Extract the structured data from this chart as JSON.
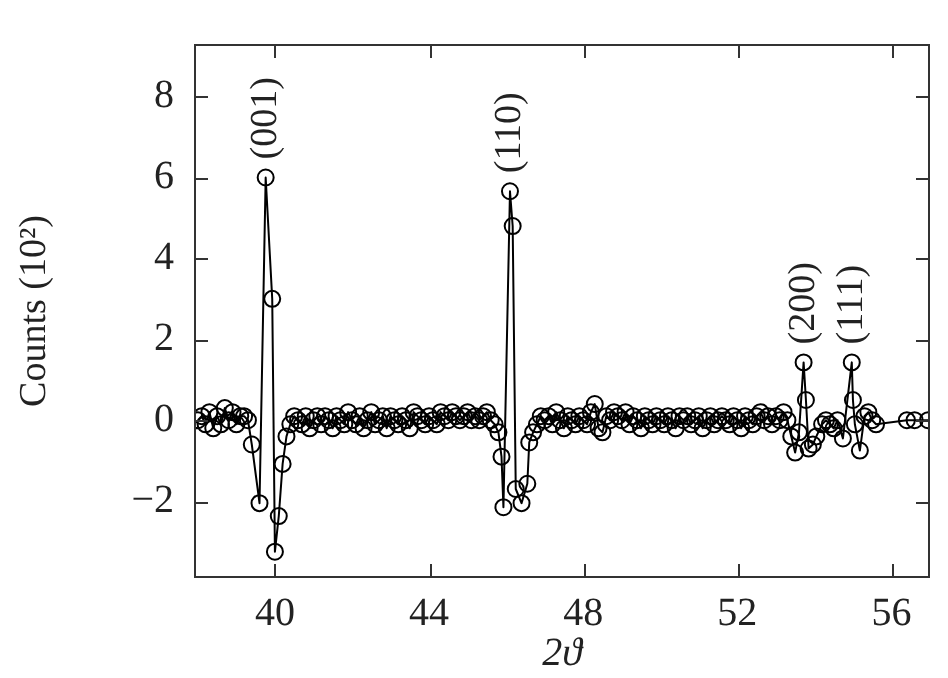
{
  "chart_data": {
    "type": "line",
    "xlabel": "2ϑ",
    "ylabel": "Counts (10²)",
    "xlim": [
      37.9,
      57.0
    ],
    "xticks": [
      40,
      44,
      48,
      52,
      56
    ],
    "ylim": [
      -3.9,
      9.3
    ],
    "yticks": [
      -2,
      0,
      2,
      4,
      6,
      8
    ],
    "grid": false,
    "legend": false,
    "marker": "circle",
    "line_style": "solid",
    "series": [
      {
        "color": "#000000",
        "x": [
          38.0,
          38.1,
          38.2,
          38.3,
          38.4,
          38.5,
          38.6,
          38.7,
          38.8,
          38.9,
          39.0,
          39.1,
          39.2,
          39.3,
          39.4,
          39.6,
          39.76,
          39.93,
          40.0,
          40.1,
          40.2,
          40.3,
          40.4,
          40.5,
          40.6,
          40.7,
          40.8,
          40.9,
          41.0,
          41.1,
          41.2,
          41.3,
          41.4,
          41.5,
          41.6,
          41.7,
          41.8,
          41.9,
          42.0,
          42.1,
          42.2,
          42.3,
          42.4,
          42.5,
          42.6,
          42.7,
          42.8,
          42.9,
          43.0,
          43.1,
          43.2,
          43.3,
          43.4,
          43.5,
          43.6,
          43.7,
          43.8,
          43.9,
          44.0,
          44.1,
          44.2,
          44.3,
          44.4,
          44.5,
          44.6,
          44.7,
          44.8,
          44.9,
          45.0,
          45.1,
          45.2,
          45.3,
          45.4,
          45.5,
          45.6,
          45.7,
          45.8,
          45.88,
          45.93,
          46.1,
          46.17,
          46.25,
          46.4,
          46.55,
          46.6,
          46.7,
          46.8,
          46.9,
          47.0,
          47.1,
          47.2,
          47.3,
          47.4,
          47.5,
          47.6,
          47.7,
          47.8,
          47.9,
          48.0,
          48.1,
          48.2,
          48.3,
          48.4,
          48.5,
          48.6,
          48.7,
          48.8,
          48.9,
          49.0,
          49.1,
          49.2,
          49.3,
          49.4,
          49.5,
          49.6,
          49.7,
          49.8,
          49.9,
          50.0,
          50.1,
          50.2,
          50.3,
          50.4,
          50.5,
          50.6,
          50.7,
          50.8,
          50.9,
          51.0,
          51.1,
          51.2,
          51.3,
          51.4,
          51.5,
          51.6,
          51.7,
          51.8,
          51.9,
          52.0,
          52.1,
          52.2,
          52.3,
          52.4,
          52.5,
          52.6,
          52.7,
          52.8,
          52.9,
          53.0,
          53.1,
          53.2,
          53.3,
          53.4,
          53.5,
          53.6,
          53.72,
          53.78,
          53.85,
          53.96,
          54.05,
          54.2,
          54.3,
          54.4,
          54.5,
          54.6,
          54.74,
          54.97,
          55.0,
          55.05,
          55.18,
          55.3,
          55.4,
          55.5,
          55.6,
          56.4,
          56.6,
          56.95
        ],
        "values": [
          0,
          0.1,
          -0.1,
          0.2,
          -0.2,
          0.1,
          -0.1,
          0.3,
          0,
          0.2,
          -0.1,
          0.1,
          0.1,
          0,
          -0.6,
          -2.05,
          6.0,
          3.0,
          -3.25,
          -2.37,
          -1.08,
          -0.4,
          -0.1,
          0.1,
          0,
          -0.1,
          0.1,
          -0.2,
          0,
          0.1,
          -0.1,
          0.1,
          0,
          -0.2,
          0.1,
          0,
          -0.1,
          0.2,
          0,
          -0.1,
          0.1,
          -0.2,
          0,
          0.2,
          -0.1,
          0,
          0.1,
          -0.2,
          0.1,
          0,
          -0.1,
          0.1,
          0,
          -0.2,
          0.2,
          0.1,
          0,
          -0.1,
          0.1,
          0,
          -0.1,
          0.2,
          0.1,
          0,
          0.2,
          0.1,
          0,
          0.1,
          0.2,
          0,
          0.1,
          0,
          0.1,
          0.2,
          0,
          -0.1,
          -0.3,
          -0.9,
          -2.15,
          5.66,
          4.8,
          -1.7,
          -2.05,
          -1.57,
          -0.55,
          -0.3,
          -0.1,
          0.1,
          0,
          0.1,
          -0.1,
          0.2,
          0,
          -0.2,
          0.1,
          0,
          -0.1,
          0.1,
          0,
          -0.1,
          0.2,
          0.4,
          -0.2,
          -0.3,
          0.1,
          0,
          0.2,
          0.1,
          0,
          0.2,
          -0.1,
          0.1,
          0,
          -0.2,
          0.1,
          0,
          -0.1,
          0.1,
          0,
          -0.1,
          0.1,
          0,
          -0.2,
          0.1,
          0,
          0.1,
          -0.1,
          0,
          0.1,
          -0.2,
          0,
          0.1,
          -0.1,
          0,
          0.1,
          0,
          -0.1,
          0.1,
          0,
          -0.2,
          0.1,
          0,
          -0.1,
          0.1,
          0.2,
          0,
          0.1,
          -0.1,
          0.1,
          0,
          0.2,
          0,
          -0.4,
          -0.8,
          -0.3,
          1.43,
          0.5,
          -0.7,
          -0.6,
          -0.4,
          -0.1,
          0,
          -0.1,
          -0.2,
          0,
          -0.45,
          1.43,
          0.5,
          -0.1,
          -0.75,
          0.1,
          0.2,
          0,
          -0.1,
          0,
          0,
          0
        ]
      }
    ],
    "annotations": [
      {
        "text": "(001)",
        "x": 39.76,
        "y": 6.0
      },
      {
        "text": "(110)",
        "x": 46.1,
        "y": 5.66
      },
      {
        "text": "(200)",
        "x": 53.72,
        "y": 1.43
      },
      {
        "text": "(111)",
        "x": 54.97,
        "y": 1.43
      }
    ]
  }
}
